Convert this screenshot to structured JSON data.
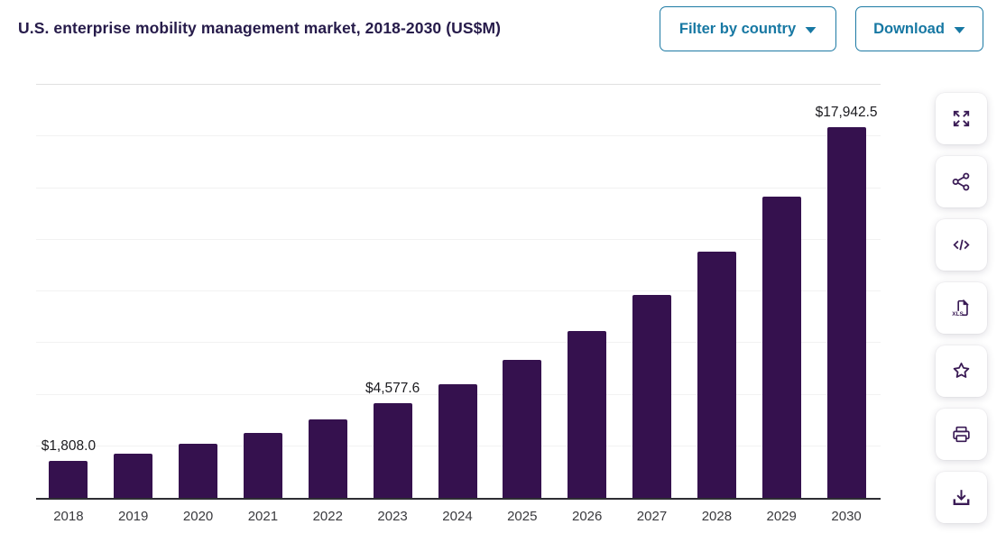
{
  "header": {
    "title": "U.S. enterprise mobility management market, 2018-2030 (US$M)",
    "filter_button_label": "Filter by country",
    "download_button_label": "Download"
  },
  "toolbar": {
    "buttons": [
      {
        "icon": "fullscreen-icon"
      },
      {
        "icon": "share-icon"
      },
      {
        "icon": "embed-code-icon"
      },
      {
        "icon": "xls-file-icon",
        "label": "XLS"
      },
      {
        "icon": "star-icon"
      },
      {
        "icon": "printer-icon"
      },
      {
        "icon": "download-icon"
      }
    ]
  },
  "colors": {
    "bar": "#35114E",
    "title": "#261B4A",
    "button_accent": "#1778A3",
    "icon": "#3A1B55",
    "axis": "#2E2E33",
    "gridline": "#F2F2F2"
  },
  "chart_data": {
    "type": "bar",
    "title": "U.S. enterprise mobility management market, 2018-2030 (US$M)",
    "unit": "US$M",
    "categories": [
      "2018",
      "2019",
      "2020",
      "2021",
      "2022",
      "2023",
      "2024",
      "2025",
      "2026",
      "2027",
      "2028",
      "2029",
      "2030"
    ],
    "values": [
      1808.0,
      2140,
      2620,
      3150,
      3810,
      4577.6,
      5490,
      6690,
      8080,
      9820,
      11940,
      14580,
      17942.5
    ],
    "labeled_points": {
      "2018": "$1,808.0",
      "2023": "$4,577.6",
      "2030": "$17,942.5"
    },
    "ylim": [
      0,
      20000
    ],
    "gridline_step": 2500,
    "grid": true,
    "y_axis_labels_visible": false,
    "legend": "none",
    "bar_color": "#35114E"
  }
}
